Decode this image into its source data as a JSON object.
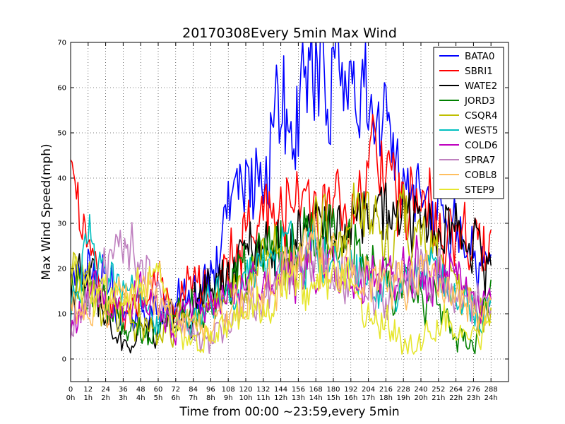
{
  "chart_data": {
    "type": "line",
    "title": "20170308Every 5min Max Wind",
    "xlabel": "Time from 00:00 ~23:59,every 5min",
    "ylabel": "Max Wind Speed(mph)",
    "xlim": [
      0,
      300
    ],
    "ylim": [
      -5,
      70
    ],
    "grid": true,
    "legend_position": "top-right",
    "x_ticks": [
      0,
      12,
      24,
      36,
      48,
      60,
      72,
      84,
      96,
      108,
      120,
      132,
      144,
      156,
      168,
      180,
      192,
      204,
      216,
      228,
      240,
      252,
      264,
      276,
      288
    ],
    "x_tick_labels": [
      "0",
      "12",
      "24",
      "36",
      "48",
      "60",
      "72",
      "84",
      "96",
      "108",
      "120",
      "132",
      "144",
      "156",
      "168",
      "180",
      "192",
      "204",
      "216",
      "228",
      "240",
      "252",
      "264",
      "276",
      "288"
    ],
    "x_tick_sublabels": [
      "0h",
      "1h",
      "2h",
      "3h",
      "4h",
      "5h",
      "6h",
      "7h",
      "8h",
      "9h",
      "10h",
      "11h",
      "12h",
      "13h",
      "14h",
      "15h",
      "16h",
      "17h",
      "18h",
      "19h",
      "20h",
      "21h",
      "22h",
      "23h",
      "24h"
    ],
    "y_ticks": [
      0,
      10,
      20,
      30,
      40,
      50,
      60,
      70
    ],
    "y_tick_labels": [
      "0",
      "10",
      "20",
      "30",
      "40",
      "50",
      "60",
      "70"
    ],
    "knots_x": [
      0,
      12,
      24,
      36,
      48,
      60,
      72,
      84,
      96,
      108,
      120,
      132,
      144,
      156,
      168,
      180,
      192,
      204,
      216,
      228,
      240,
      252,
      264,
      276,
      288
    ],
    "series": [
      {
        "name": "BATA0",
        "color": "#0000ff",
        "values": [
          16,
          18,
          16,
          10,
          12,
          10,
          12,
          14,
          17,
          30,
          38,
          40,
          58,
          58,
          65,
          64,
          63,
          57,
          50,
          40,
          35,
          30,
          27,
          23,
          20
        ]
      },
      {
        "name": "SBRI1",
        "color": "#ff0000",
        "values": [
          38,
          26,
          15,
          8,
          12,
          20,
          12,
          16,
          18,
          22,
          28,
          30,
          33,
          36,
          34,
          32,
          30,
          42,
          38,
          36,
          33,
          30,
          28,
          26,
          24
        ]
      },
      {
        "name": "WATE2",
        "color": "#000000",
        "values": [
          15,
          18,
          12,
          4,
          5,
          6,
          10,
          12,
          16,
          20,
          22,
          24,
          26,
          27,
          30,
          28,
          30,
          32,
          30,
          32,
          30,
          28,
          26,
          24,
          18
        ]
      },
      {
        "name": "JORD3",
        "color": "#008000",
        "values": [
          18,
          14,
          12,
          8,
          5,
          6,
          8,
          10,
          12,
          16,
          20,
          24,
          25,
          26,
          28,
          27,
          25,
          22,
          18,
          16,
          14,
          10,
          4,
          3,
          14
        ]
      },
      {
        "name": "CSQR4",
        "color": "#bfbf00",
        "values": [
          20,
          16,
          12,
          10,
          8,
          6,
          8,
          10,
          12,
          14,
          18,
          22,
          22,
          24,
          30,
          26,
          28,
          30,
          28,
          30,
          28,
          22,
          18,
          12,
          10
        ]
      },
      {
        "name": "WEST5",
        "color": "#00bfbf",
        "values": [
          10,
          30,
          18,
          14,
          12,
          8,
          8,
          10,
          12,
          14,
          16,
          20,
          22,
          22,
          24,
          22,
          18,
          16,
          14,
          16,
          20,
          18,
          16,
          12,
          10
        ]
      },
      {
        "name": "COLD6",
        "color": "#bf00bf",
        "values": [
          8,
          14,
          16,
          14,
          12,
          10,
          8,
          10,
          12,
          14,
          16,
          18,
          18,
          20,
          22,
          20,
          18,
          18,
          16,
          18,
          20,
          18,
          16,
          14,
          12
        ]
      },
      {
        "name": "SPRA7",
        "color": "#bf80bf",
        "values": [
          10,
          12,
          20,
          28,
          22,
          14,
          8,
          6,
          4,
          8,
          12,
          16,
          18,
          20,
          22,
          20,
          16,
          14,
          14,
          16,
          18,
          18,
          16,
          14,
          12
        ]
      },
      {
        "name": "COBL8",
        "color": "#ffbf60",
        "values": [
          14,
          12,
          12,
          16,
          14,
          12,
          8,
          6,
          8,
          10,
          14,
          16,
          20,
          22,
          24,
          22,
          20,
          18,
          16,
          16,
          18,
          16,
          14,
          12,
          12
        ]
      },
      {
        "name": "STEP9",
        "color": "#e6e62e",
        "values": [
          20,
          16,
          14,
          12,
          16,
          18,
          6,
          4,
          4,
          8,
          12,
          12,
          14,
          16,
          20,
          18,
          16,
          10,
          8,
          4,
          3,
          8,
          6,
          6,
          8
        ]
      }
    ]
  }
}
